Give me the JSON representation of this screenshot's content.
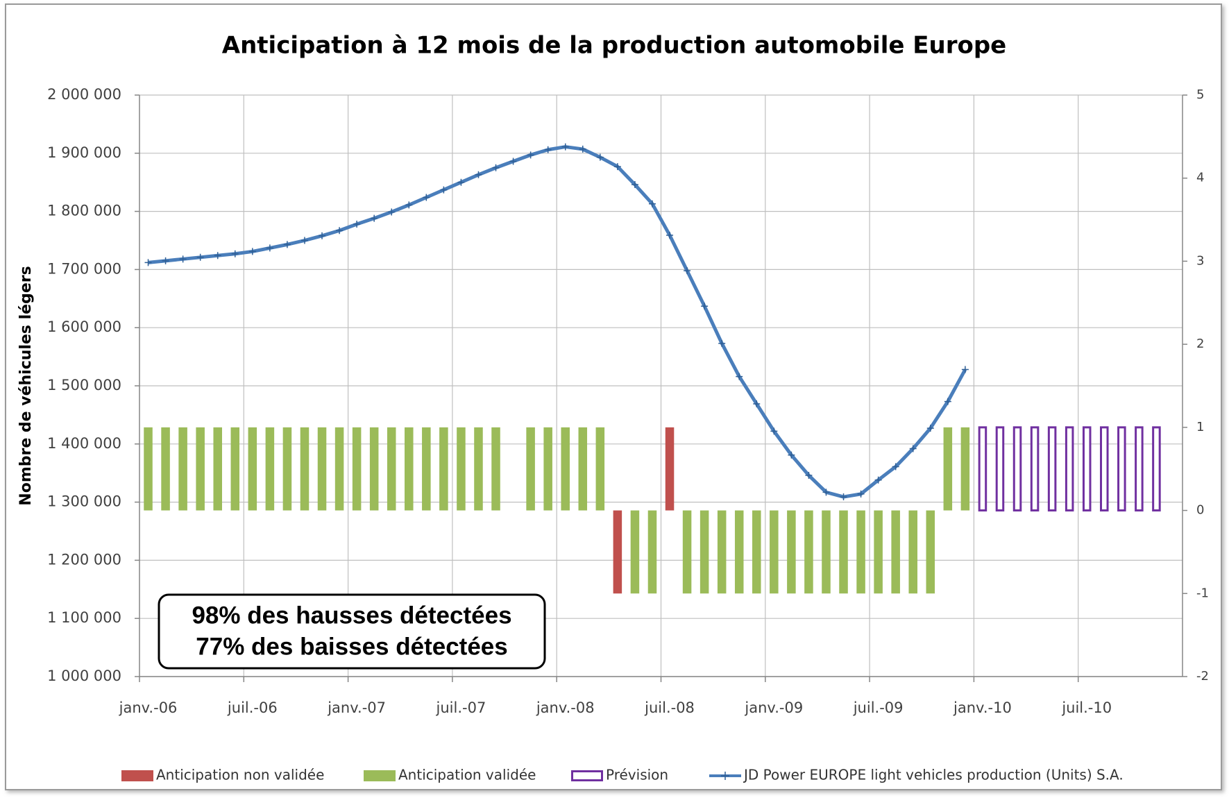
{
  "chart_data": {
    "type": "bar_line",
    "title": "Anticipation à 12 mois de la production automobile Europe",
    "y_label": "Nombre de véhicules légers",
    "annotations": [
      "98% des hausses détectées",
      "77% des baisses détectées"
    ],
    "categories": [
      "janv.-06",
      null,
      null,
      null,
      null,
      null,
      "juil.-06",
      null,
      null,
      null,
      null,
      null,
      "janv.-07",
      null,
      null,
      null,
      null,
      null,
      "juil.-07",
      null,
      null,
      null,
      null,
      null,
      "janv.-08",
      null,
      null,
      null,
      null,
      null,
      "juil.-08",
      null,
      null,
      null,
      null,
      null,
      "janv.-09",
      null,
      null,
      null,
      null,
      null,
      "juil.-09",
      null,
      null,
      null,
      null,
      null,
      "janv.-10",
      null,
      null,
      null,
      null,
      null,
      "juil.-10",
      null,
      null,
      null,
      null,
      null
    ],
    "series": [
      {
        "name": "Anticipation non validée",
        "type": "bar",
        "axis": "y2",
        "color": "#c0504d",
        "values": [
          null,
          null,
          null,
          null,
          null,
          null,
          null,
          null,
          null,
          null,
          null,
          null,
          null,
          null,
          null,
          null,
          null,
          null,
          null,
          null,
          null,
          null,
          null,
          null,
          null,
          null,
          null,
          -1,
          null,
          null,
          1,
          null,
          null,
          null,
          null,
          null,
          null,
          null,
          null,
          null,
          null,
          null,
          null,
          null,
          null,
          null,
          null,
          null,
          null,
          null,
          null,
          null,
          null,
          null,
          null,
          null,
          null,
          null,
          null,
          null
        ]
      },
      {
        "name": "Anticipation validée",
        "type": "bar",
        "axis": "y2",
        "color": "#9bbb59",
        "values": [
          1,
          1,
          1,
          1,
          1,
          1,
          1,
          1,
          1,
          1,
          1,
          1,
          1,
          1,
          1,
          1,
          1,
          1,
          1,
          1,
          1,
          null,
          1,
          1,
          1,
          1,
          1,
          null,
          -1,
          -1,
          null,
          -1,
          -1,
          -1,
          -1,
          -1,
          -1,
          -1,
          -1,
          -1,
          -1,
          -1,
          -1,
          -1,
          -1,
          -1,
          1,
          1,
          null,
          null,
          null,
          null,
          null,
          null,
          null,
          null,
          null,
          null,
          null,
          null
        ]
      },
      {
        "name": "Prévision",
        "type": "bar",
        "axis": "y2",
        "color": "#7030a0",
        "outline": true,
        "values": [
          null,
          null,
          null,
          null,
          null,
          null,
          null,
          null,
          null,
          null,
          null,
          null,
          null,
          null,
          null,
          null,
          null,
          null,
          null,
          null,
          null,
          null,
          null,
          null,
          null,
          null,
          null,
          null,
          null,
          null,
          null,
          null,
          null,
          null,
          null,
          null,
          null,
          null,
          null,
          null,
          null,
          null,
          null,
          null,
          null,
          null,
          null,
          null,
          1,
          1,
          1,
          1,
          1,
          1,
          1,
          1,
          1,
          1,
          1,
          null
        ]
      },
      {
        "name": "JD Power EUROPE light vehicles production (Units) S.A.",
        "type": "line",
        "axis": "y",
        "color": "#4a7ebb",
        "values": [
          1712000,
          1715000,
          1718000,
          1721000,
          1724000,
          1727000,
          1731000,
          1737000,
          1743000,
          1750000,
          1758000,
          1767000,
          1778000,
          1788000,
          1799000,
          1811000,
          1824000,
          1837000,
          1850000,
          1863000,
          1875000,
          1886000,
          1897000,
          1906000,
          1911000,
          1907000,
          1893000,
          1877000,
          1846000,
          1813000,
          1759000,
          1698000,
          1637000,
          1573000,
          1516000,
          1469000,
          1422000,
          1381000,
          1346000,
          1317000,
          1309000,
          1314000,
          1338000,
          1361000,
          1392000,
          1427000,
          1473000,
          1528000,
          null,
          null,
          null,
          null,
          null,
          null,
          null,
          null,
          null,
          null,
          null,
          null
        ]
      }
    ],
    "ylim": [
      1000000,
      2000000
    ],
    "yticks": [
      {
        "value": 1000000,
        "label": "1 000 000"
      },
      {
        "value": 1100000,
        "label": "1 100 000"
      },
      {
        "value": 1200000,
        "label": "1 200 000"
      },
      {
        "value": 1300000,
        "label": "1 300 000"
      },
      {
        "value": 1400000,
        "label": "1 400 000"
      },
      {
        "value": 1500000,
        "label": "1 500 000"
      },
      {
        "value": 1600000,
        "label": "1 600 000"
      },
      {
        "value": 1700000,
        "label": "1 700 000"
      },
      {
        "value": 1800000,
        "label": "1 800 000"
      },
      {
        "value": 1900000,
        "label": "1 900 000"
      },
      {
        "value": 2000000,
        "label": "2 000 000"
      }
    ],
    "y2lim": [
      -2,
      5
    ],
    "y2ticks": [
      -2,
      -1,
      0,
      1,
      2,
      3,
      4,
      5
    ],
    "grid": true,
    "legend": "bottom"
  }
}
